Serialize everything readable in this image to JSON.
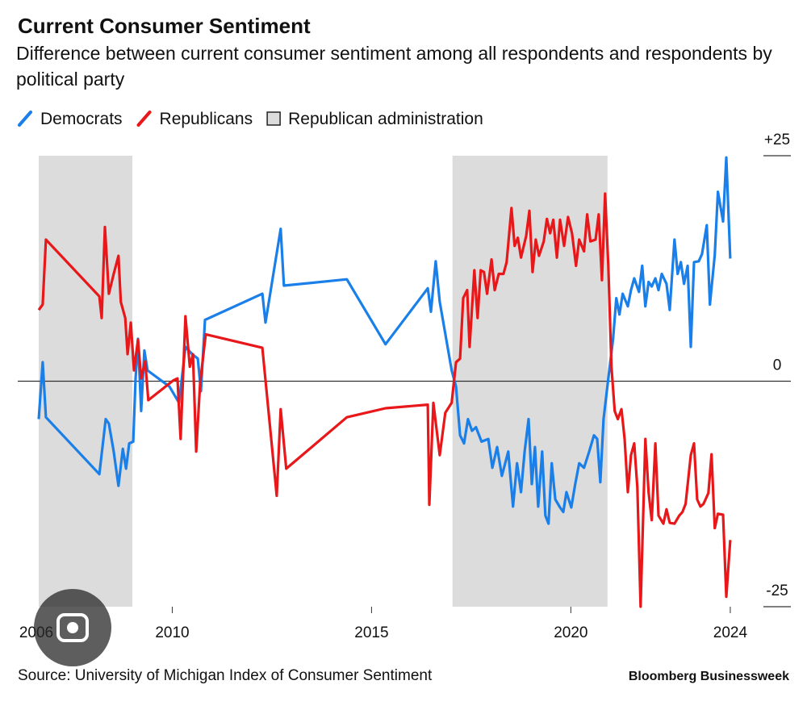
{
  "chart_data": {
    "type": "line",
    "title": "Current Consumer Sentiment",
    "subtitle": "Difference between current consumer sentiment among all respondents and respondents by political party",
    "source": "Source: University of Michigan Index of Consumer Sentiment",
    "brand": "Bloomberg Businessweek",
    "xlim": [
      2006.65,
      2025.52
    ],
    "xticks": [
      2006,
      2010,
      2015,
      2020,
      2024
    ],
    "ylim": [
      -25,
      25
    ],
    "yticks": [
      {
        "value": 25,
        "label": "+25"
      },
      0,
      -25
    ],
    "shaded": {
      "name": "Republican administration",
      "color": "#dcdcdc",
      "ranges": [
        [
          2006.65,
          2009.0
        ],
        [
          2017.03,
          2020.92
        ]
      ]
    },
    "series": [
      {
        "name": "Democrats",
        "color": "#1a7fe8",
        "x": [
          2006.65,
          2006.75,
          2006.83,
          2008.17,
          2008.33,
          2008.41,
          2008.53,
          2008.65,
          2008.76,
          2008.84,
          2008.92,
          2009.02,
          2009.08,
          2009.14,
          2009.22,
          2009.3,
          2009.38,
          2009.93,
          2010.17,
          2010.33,
          2010.5,
          2010.64,
          2010.72,
          2010.82,
          2012.26,
          2012.34,
          2012.72,
          2012.8,
          2014.38,
          2015.35,
          2016.41,
          2016.49,
          2016.61,
          2016.71,
          2017.01,
          2017.12,
          2017.22,
          2017.32,
          2017.42,
          2017.52,
          2017.62,
          2017.76,
          2017.93,
          2018.03,
          2018.15,
          2018.27,
          2018.43,
          2018.55,
          2018.65,
          2018.75,
          2018.84,
          2018.94,
          2019.02,
          2019.1,
          2019.18,
          2019.28,
          2019.36,
          2019.44,
          2019.52,
          2019.61,
          2019.73,
          2019.81,
          2019.89,
          2020.01,
          2020.11,
          2020.21,
          2020.33,
          2020.46,
          2020.58,
          2020.66,
          2020.74,
          2020.82,
          2020.94,
          2021.06,
          2021.14,
          2021.22,
          2021.3,
          2021.43,
          2021.51,
          2021.59,
          2021.71,
          2021.79,
          2021.87,
          2021.95,
          2022.03,
          2022.12,
          2022.2,
          2022.28,
          2022.4,
          2022.48,
          2022.6,
          2022.68,
          2022.76,
          2022.84,
          2022.93,
          2023.01,
          2023.09,
          2023.21,
          2023.29,
          2023.41,
          2023.49,
          2023.61,
          2023.69,
          2023.82,
          2023.9,
          2024.0
        ],
        "values": [
          -4.2,
          2.1,
          -4.0,
          -10.3,
          -4.2,
          -4.7,
          -7.8,
          -11.6,
          -7.5,
          -9.7,
          -6.9,
          -6.7,
          0.3,
          4.7,
          -3.3,
          3.4,
          1.2,
          -0.6,
          -2.4,
          3.8,
          3.0,
          2.5,
          -1.1,
          6.8,
          9.7,
          6.5,
          16.9,
          10.6,
          11.3,
          4.1,
          10.3,
          7.7,
          13.3,
          8.8,
          1.2,
          -0.6,
          -6.0,
          -6.9,
          -4.2,
          -5.5,
          -5.1,
          -6.7,
          -6.4,
          -9.6,
          -7.3,
          -10.5,
          -7.8,
          -13.9,
          -9.1,
          -12.3,
          -7.8,
          -4.2,
          -11.4,
          -7.3,
          -13.9,
          -7.8,
          -14.9,
          -15.8,
          -9.1,
          -13.1,
          -14.0,
          -14.5,
          -12.3,
          -14.0,
          -11.4,
          -9.1,
          -9.6,
          -7.8,
          -6.0,
          -6.4,
          -11.2,
          -4.2,
          0.3,
          4.7,
          9.2,
          7.4,
          9.7,
          8.3,
          10.1,
          11.4,
          9.9,
          12.8,
          8.3,
          11.0,
          10.5,
          11.4,
          10.1,
          11.9,
          10.8,
          7.9,
          15.7,
          11.9,
          13.2,
          10.8,
          12.8,
          3.8,
          13.2,
          13.3,
          14.1,
          17.3,
          8.5,
          14.0,
          21.0,
          17.7,
          24.8,
          13.6
        ]
      },
      {
        "name": "Republicans",
        "color": "#e8171a",
        "x": [
          2006.65,
          2006.75,
          2006.83,
          2008.17,
          2008.23,
          2008.31,
          2008.41,
          2008.53,
          2008.65,
          2008.71,
          2008.82,
          2008.88,
          2008.96,
          2009.04,
          2009.14,
          2009.22,
          2009.32,
          2009.4,
          2010.03,
          2010.13,
          2010.21,
          2010.33,
          2010.44,
          2010.52,
          2010.6,
          2010.7,
          2010.84,
          2012.26,
          2012.62,
          2012.72,
          2012.86,
          2014.38,
          2015.35,
          2016.41,
          2016.45,
          2016.55,
          2016.71,
          2016.85,
          2017.01,
          2017.12,
          2017.22,
          2017.3,
          2017.4,
          2017.46,
          2017.58,
          2017.66,
          2017.74,
          2017.82,
          2017.9,
          2018.01,
          2018.09,
          2018.19,
          2018.31,
          2018.39,
          2018.51,
          2018.59,
          2018.67,
          2018.75,
          2018.88,
          2018.96,
          2019.04,
          2019.12,
          2019.2,
          2019.32,
          2019.4,
          2019.48,
          2019.56,
          2019.65,
          2019.73,
          2019.83,
          2019.93,
          2020.03,
          2020.13,
          2020.21,
          2020.33,
          2020.41,
          2020.49,
          2020.62,
          2020.7,
          2020.78,
          2020.86,
          2020.94,
          2021.02,
          2021.1,
          2021.18,
          2021.27,
          2021.35,
          2021.43,
          2021.51,
          2021.59,
          2021.67,
          2021.75,
          2021.87,
          2021.95,
          2022.03,
          2022.12,
          2022.2,
          2022.32,
          2022.4,
          2022.48,
          2022.6,
          2022.72,
          2022.8,
          2022.88,
          2023.01,
          2023.09,
          2023.17,
          2023.25,
          2023.33,
          2023.45,
          2023.53,
          2023.61,
          2023.69,
          2023.82,
          2023.9,
          2024.0
        ],
        "values": [
          7.9,
          8.5,
          15.7,
          9.4,
          7.0,
          17.1,
          9.7,
          11.9,
          13.9,
          8.8,
          7.0,
          3.0,
          6.5,
          1.2,
          4.6,
          0.3,
          2.2,
          -2.1,
          0.1,
          0.3,
          -6.4,
          7.2,
          1.6,
          3.0,
          -7.8,
          -0.2,
          5.2,
          3.7,
          -12.7,
          -3.1,
          -9.7,
          -4.0,
          -3.0,
          -2.6,
          -13.7,
          -2.4,
          -8.2,
          -3.5,
          -2.4,
          2.1,
          2.5,
          9.2,
          10.1,
          3.8,
          12.3,
          7.0,
          12.3,
          12.1,
          9.7,
          13.5,
          10.1,
          11.9,
          11.9,
          13.2,
          19.2,
          15.0,
          15.9,
          13.7,
          16.1,
          18.9,
          12.1,
          15.7,
          13.9,
          15.5,
          18.0,
          16.4,
          17.9,
          13.7,
          17.9,
          15.0,
          18.2,
          16.4,
          12.8,
          15.7,
          14.4,
          18.5,
          15.5,
          15.7,
          18.5,
          11.2,
          20.8,
          12.8,
          1.6,
          -3.3,
          -4.2,
          -3.1,
          -6.4,
          -12.3,
          -8.2,
          -6.9,
          -11.8,
          -25.0,
          -6.4,
          -12.3,
          -15.4,
          -6.9,
          -14.9,
          -15.8,
          -14.2,
          -15.7,
          -15.8,
          -14.9,
          -14.5,
          -13.6,
          -8.2,
          -6.9,
          -13.1,
          -13.9,
          -13.6,
          -12.4,
          -8.1,
          -16.3,
          -14.7,
          -14.8,
          -23.9,
          -17.6
        ]
      }
    ]
  }
}
